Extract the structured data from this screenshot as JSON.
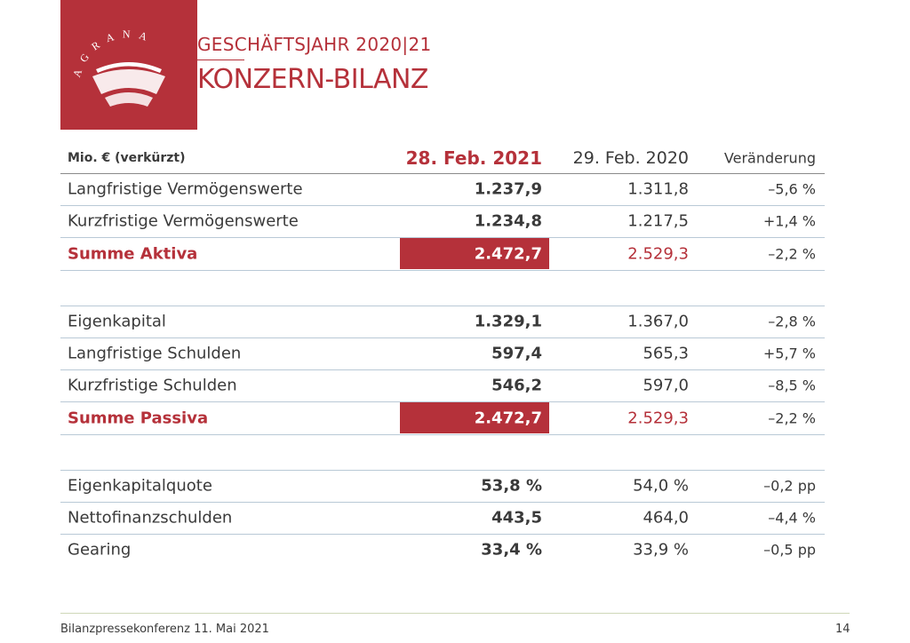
{
  "header": {
    "logo": "AGRANA",
    "subtitle": "GESCHÄFTSJAHR 2020|21",
    "title": "KONZERN-BILANZ"
  },
  "table": {
    "columns": [
      "Mio. € (verkürzt)",
      "28. Feb. 2021",
      "29. Feb. 2020",
      "Veränderung"
    ],
    "sections": [
      {
        "rows": [
          [
            "Langfristige Vermögenswerte",
            "1.237,9",
            "1.311,8",
            "–5,6 %"
          ],
          [
            "Kurzfristige Vermögenswerte",
            "1.234,8",
            "1.217,5",
            "+1,4 %"
          ]
        ],
        "total": [
          "Summe Aktiva",
          "2.472,7",
          "2.529,3",
          "–2,2 %"
        ]
      },
      {
        "rows": [
          [
            "Eigenkapital",
            "1.329,1",
            "1.367,0",
            "–2,8 %"
          ],
          [
            "Langfristige Schulden",
            "597,4",
            "565,3",
            "+5,7 %"
          ],
          [
            "Kurzfristige Schulden",
            "546,2",
            "597,0",
            "–8,5 %"
          ]
        ],
        "total": [
          "Summe Passiva",
          "2.472,7",
          "2.529,3",
          "–2,2 %"
        ]
      },
      {
        "rows": [
          [
            "Eigenkapitalquote",
            "53,8 %",
            "54,0 %",
            "–0,2 pp"
          ],
          [
            "Nettofinanzschulden",
            "443,5",
            "464,0",
            "–4,4 %"
          ],
          [
            "Gearing",
            "33,4 %",
            "33,9 %",
            "–0,5 pp"
          ]
        ]
      }
    ]
  },
  "footer": {
    "text": "Bilanzpressekonferenz 11. Mai 2021",
    "page": "14"
  }
}
